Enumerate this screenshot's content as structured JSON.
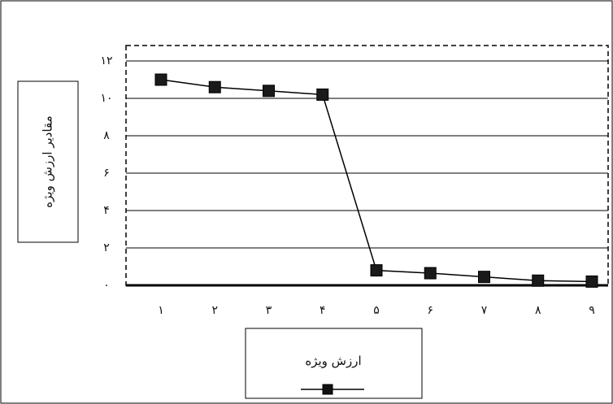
{
  "chart_data": {
    "type": "line",
    "title": "",
    "ylabel": "مقادیر ارزش ویژه",
    "xlabel": "",
    "x": [
      1,
      2,
      3,
      4,
      5,
      6,
      7,
      8,
      9
    ],
    "x_tick_labels": [
      "۱",
      "۲",
      "۳",
      "۴",
      "۵",
      "۶",
      "۷",
      "۸",
      "۹"
    ],
    "y_tick_labels": [
      "۰",
      "۲",
      "۴",
      "۶",
      "۸",
      "۱۰",
      "۱۲"
    ],
    "y_ticks": [
      0,
      2,
      4,
      6,
      8,
      10,
      12
    ],
    "ylim": [
      0,
      12
    ],
    "grid": true,
    "series": [
      {
        "name": "ارزش ویژه",
        "values": [
          11.0,
          10.6,
          10.4,
          10.2,
          0.8,
          0.65,
          0.45,
          0.25,
          0.2
        ],
        "marker": "square",
        "color": "#000000"
      }
    ],
    "legend": {
      "position": "bottom",
      "label": "ارزش ویژه"
    }
  }
}
